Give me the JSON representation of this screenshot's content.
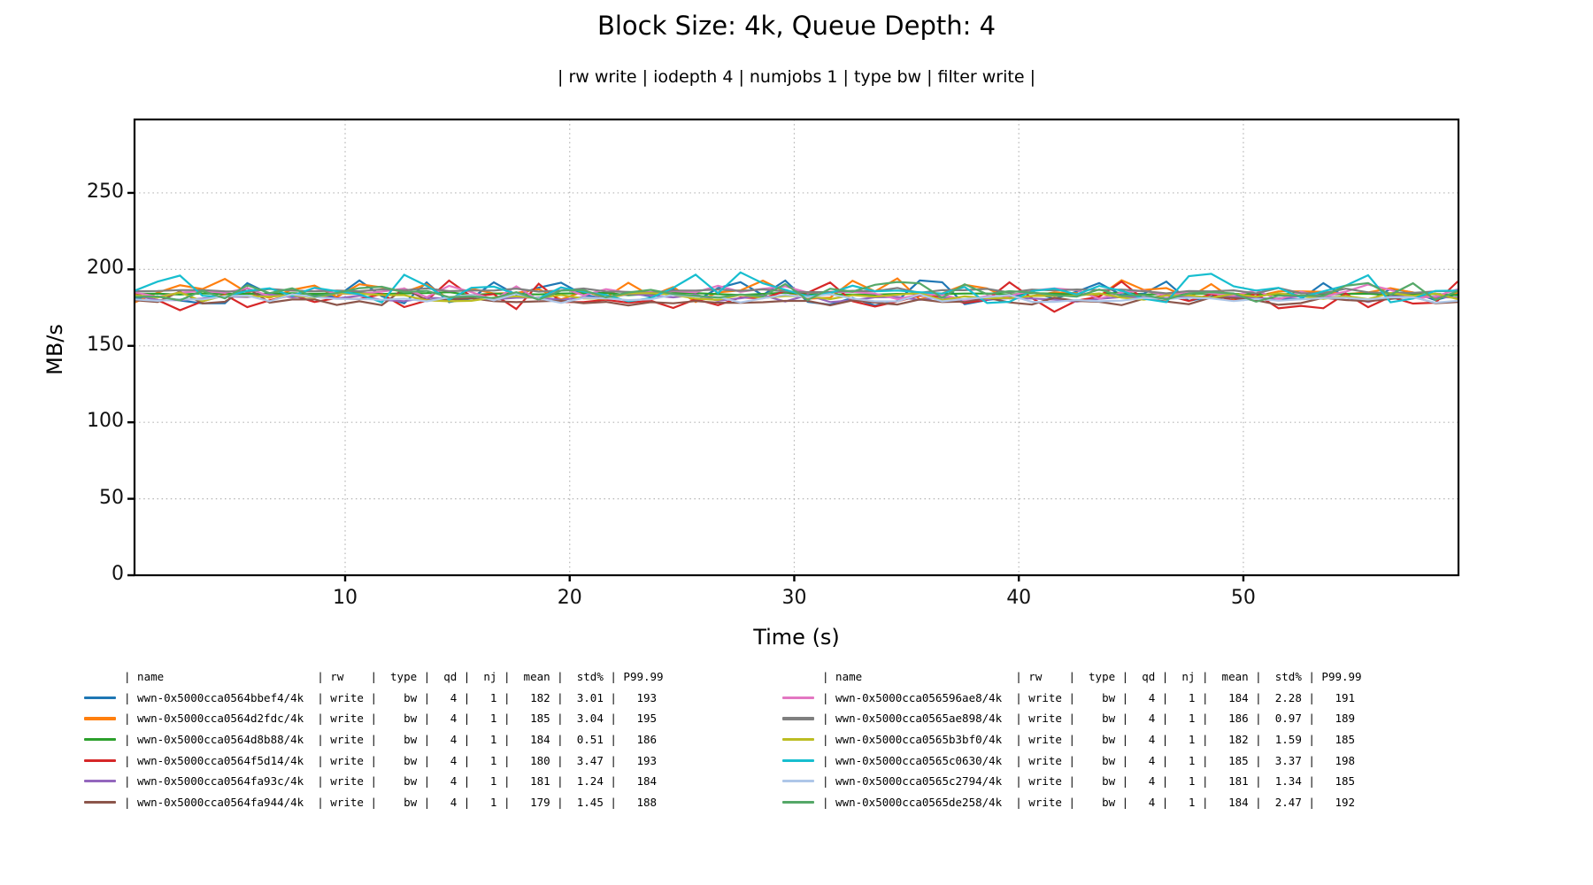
{
  "chart_data": {
    "type": "line",
    "title": "Block Size: 4k, Queue Depth: 4",
    "subtitle": "| rw write | iodepth 4 | numjobs 1 | type bw | filter write |",
    "xlabel": "Time (s)",
    "ylabel": "MB/s",
    "xticks": [
      10,
      20,
      30,
      40,
      50
    ],
    "yticks": [
      0,
      50,
      100,
      150,
      200,
      250
    ],
    "xlim": [
      0.62,
      59.58
    ],
    "ylim": [
      0,
      298
    ],
    "grid": {
      "style": "dotted",
      "color": "#b4b4b4",
      "vertical": true,
      "horizontal": true
    },
    "x_unit": "seconds",
    "data_time_range": [
      1,
      59
    ],
    "sample_interval_s": 1,
    "description": "12 overlapping noisy per-device write bandwidth time series, each oscillating tightly around its mean within a ~172-198 MB/s band; legend table below gives per-series statistics",
    "legend_columns": [
      "name",
      "rw",
      "type",
      "qd",
      "nj",
      "mean",
      "std%",
      "P99.99"
    ],
    "legend_position": "below plot, two columns of six rows",
    "series": [
      {
        "name": "wwn-0x5000cca0564bbef4/4k",
        "color": "#1f77b4",
        "rw": "write",
        "type": "bw",
        "qd": 4,
        "nj": 1,
        "mean": 182,
        "std_pct": 3.01,
        "p99_99": 193
      },
      {
        "name": "wwn-0x5000cca0564d2fdc/4k",
        "color": "#ff7f0e",
        "rw": "write",
        "type": "bw",
        "qd": 4,
        "nj": 1,
        "mean": 185,
        "std_pct": 3.04,
        "p99_99": 195
      },
      {
        "name": "wwn-0x5000cca0564d8b88/4k",
        "color": "#2ca02c",
        "rw": "write",
        "type": "bw",
        "qd": 4,
        "nj": 1,
        "mean": 184,
        "std_pct": 0.51,
        "p99_99": 186
      },
      {
        "name": "wwn-0x5000cca0564f5d14/4k",
        "color": "#d62728",
        "rw": "write",
        "type": "bw",
        "qd": 4,
        "nj": 1,
        "mean": 180,
        "std_pct": 3.47,
        "p99_99": 193
      },
      {
        "name": "wwn-0x5000cca0564fa93c/4k",
        "color": "#9467bd",
        "rw": "write",
        "type": "bw",
        "qd": 4,
        "nj": 1,
        "mean": 181,
        "std_pct": 1.24,
        "p99_99": 184
      },
      {
        "name": "wwn-0x5000cca0564fa944/4k",
        "color": "#8c564b",
        "rw": "write",
        "type": "bw",
        "qd": 4,
        "nj": 1,
        "mean": 179,
        "std_pct": 1.45,
        "p99_99": 188
      },
      {
        "name": "wwn-0x5000cca056596ae8/4k",
        "color": "#e377c2",
        "rw": "write",
        "type": "bw",
        "qd": 4,
        "nj": 1,
        "mean": 184,
        "std_pct": 2.28,
        "p99_99": 191
      },
      {
        "name": "wwn-0x5000cca0565ae898/4k",
        "color": "#7f7f7f",
        "rw": "write",
        "type": "bw",
        "qd": 4,
        "nj": 1,
        "mean": 186,
        "std_pct": 0.97,
        "p99_99": 189
      },
      {
        "name": "wwn-0x5000cca0565b3bf0/4k",
        "color": "#bcbd22",
        "rw": "write",
        "type": "bw",
        "qd": 4,
        "nj": 1,
        "mean": 182,
        "std_pct": 1.59,
        "p99_99": 185
      },
      {
        "name": "wwn-0x5000cca0565c0630/4k",
        "color": "#17becf",
        "rw": "write",
        "type": "bw",
        "qd": 4,
        "nj": 1,
        "mean": 185,
        "std_pct": 3.37,
        "p99_99": 198
      },
      {
        "name": "wwn-0x5000cca0565c2794/4k",
        "color": "#aec7e8",
        "rw": "write",
        "type": "bw",
        "qd": 4,
        "nj": 1,
        "mean": 181,
        "std_pct": 1.34,
        "p99_99": 185
      },
      {
        "name": "wwn-0x5000cca0565de258/4k",
        "color": "#55a868",
        "rw": "write",
        "type": "bw",
        "qd": 4,
        "nj": 1,
        "mean": 184,
        "std_pct": 2.47,
        "p99_99": 192
      }
    ]
  }
}
